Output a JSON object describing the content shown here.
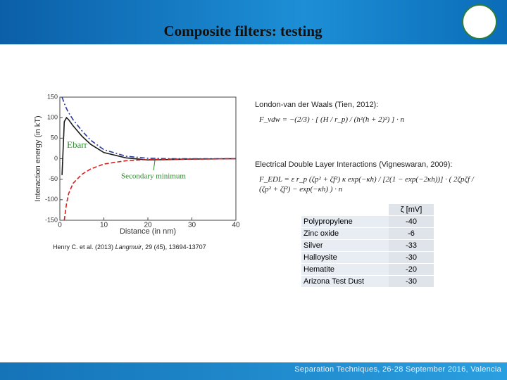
{
  "header": {
    "title": "Composite filters: testing"
  },
  "chart_data": {
    "type": "line",
    "xlabel": "Distance (in nm)",
    "ylabel": "Interaction energy (in kT)",
    "x": [
      0.5,
      1,
      1.5,
      2,
      3,
      5,
      7,
      10,
      15,
      20,
      25,
      30,
      40
    ],
    "series": [
      {
        "color": "#1a1a1a",
        "dash": "solid",
        "values": [
          -40,
          90,
          100,
          95,
          80,
          55,
          35,
          15,
          2,
          -3,
          -2,
          -1,
          0
        ]
      },
      {
        "color": "#2b3a9e",
        "dash": "dashdot",
        "values": [
          150,
          135,
          122,
          112,
          95,
          68,
          45,
          22,
          6,
          1,
          0,
          0,
          0
        ]
      },
      {
        "color": "#d62020",
        "dash": "dashed",
        "values": [
          null,
          -150,
          -110,
          -85,
          -60,
          -38,
          -25,
          -13,
          -5,
          -2,
          -1,
          -1,
          0
        ]
      }
    ],
    "xlim": [
      0,
      40
    ],
    "ylim": [
      -150,
      150
    ],
    "xticks": [
      0,
      10,
      20,
      30,
      40
    ],
    "yticks": [
      -150,
      -100,
      -50,
      0,
      50,
      100,
      150
    ],
    "annotations": [
      "Ebarr",
      "Secondary minimum"
    ]
  },
  "citation": {
    "authors": "Henry C. et al. (2013)",
    "journal": "Langmuir",
    "details": ", 29 (45), 13694-13707"
  },
  "equations": [
    {
      "title": "London-van der Waals (Tien, 2012):",
      "formula": "F_vdw = −(2/3) · [ (H / r_p) / (h²(h + 2)²) ] · n"
    },
    {
      "title": "Electrical Double Layer Interactions (Vigneswaran, 2009):",
      "formula": "F_EDL = ε r_p (ζp² + ζf²) κ exp(−κh) / [2(1 − exp(−2κh))] · ( 2ζpζf / (ζp² + ζf²) − exp(−κh) ) · n"
    }
  ],
  "table": {
    "column_header": "ζ [mV]",
    "rows": [
      [
        "Polypropylene",
        -40
      ],
      [
        "Zinc oxide",
        -6
      ],
      [
        "Silver",
        -33
      ],
      [
        "Halloysite",
        -30
      ],
      [
        "Hematite",
        -20
      ],
      [
        "Arizona Test Dust",
        -30
      ]
    ]
  },
  "footer": "Separation Techniques, 26-28 September 2016, Valencia"
}
